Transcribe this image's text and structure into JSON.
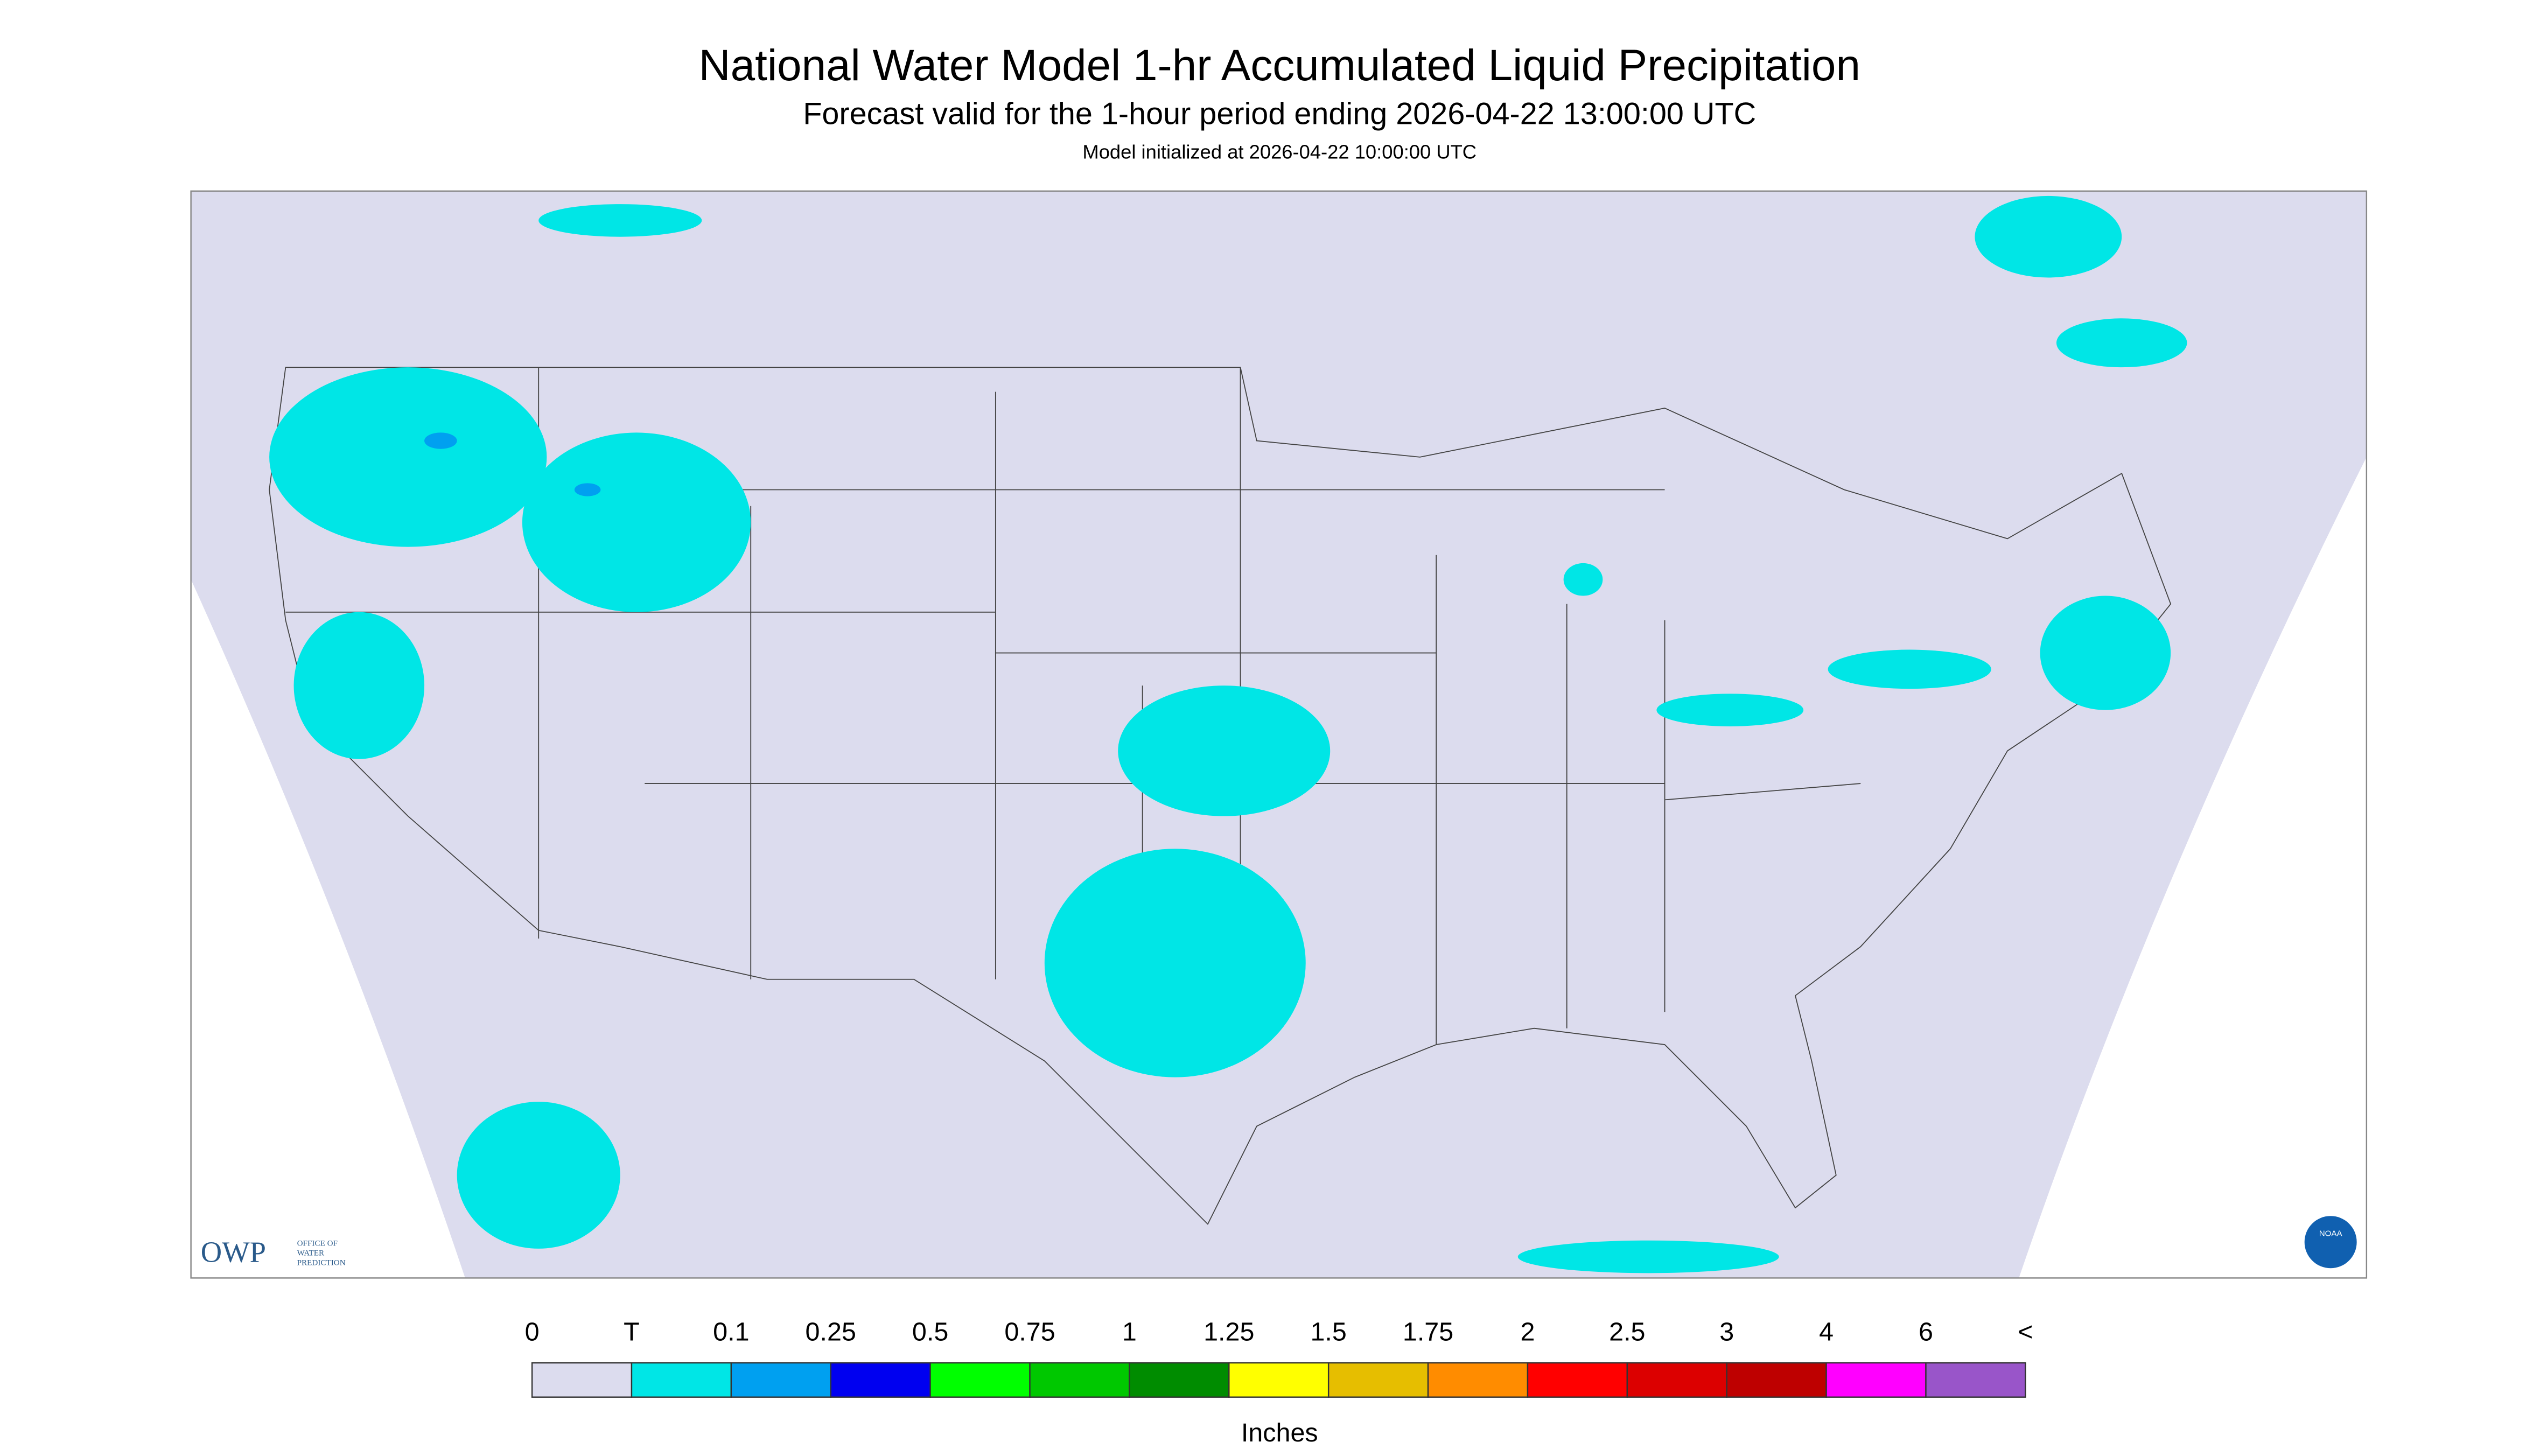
{
  "header": {
    "title": "National Water Model 1-hr Accumulated Liquid Precipitation",
    "subtitle": "Forecast valid for the 1-hour period ending 2026-04-22 13:00:00 UTC",
    "init": "Model initialized at 2026-04-22 10:00:00 UTC"
  },
  "legend": {
    "labels": [
      "0",
      "T",
      "0.1",
      "0.25",
      "0.5",
      "0.75",
      "1",
      "1.25",
      "1.5",
      "1.75",
      "2",
      "2.5",
      "3",
      "4",
      "6",
      "<"
    ],
    "colors": [
      "#dcdcee",
      "#00e6e6",
      "#00a0f0",
      "#0000f0",
      "#00ff00",
      "#00c800",
      "#008c00",
      "#ffff00",
      "#e6be00",
      "#ff8c00",
      "#ff0000",
      "#dc0000",
      "#be0000",
      "#ff00ff",
      "#9955c9"
    ],
    "units": "Inches"
  },
  "logo": {
    "owp": "OWP",
    "lines": [
      "OFFICE OF",
      "WATER",
      "PREDICTION"
    ],
    "noaa": "NOAA"
  }
}
